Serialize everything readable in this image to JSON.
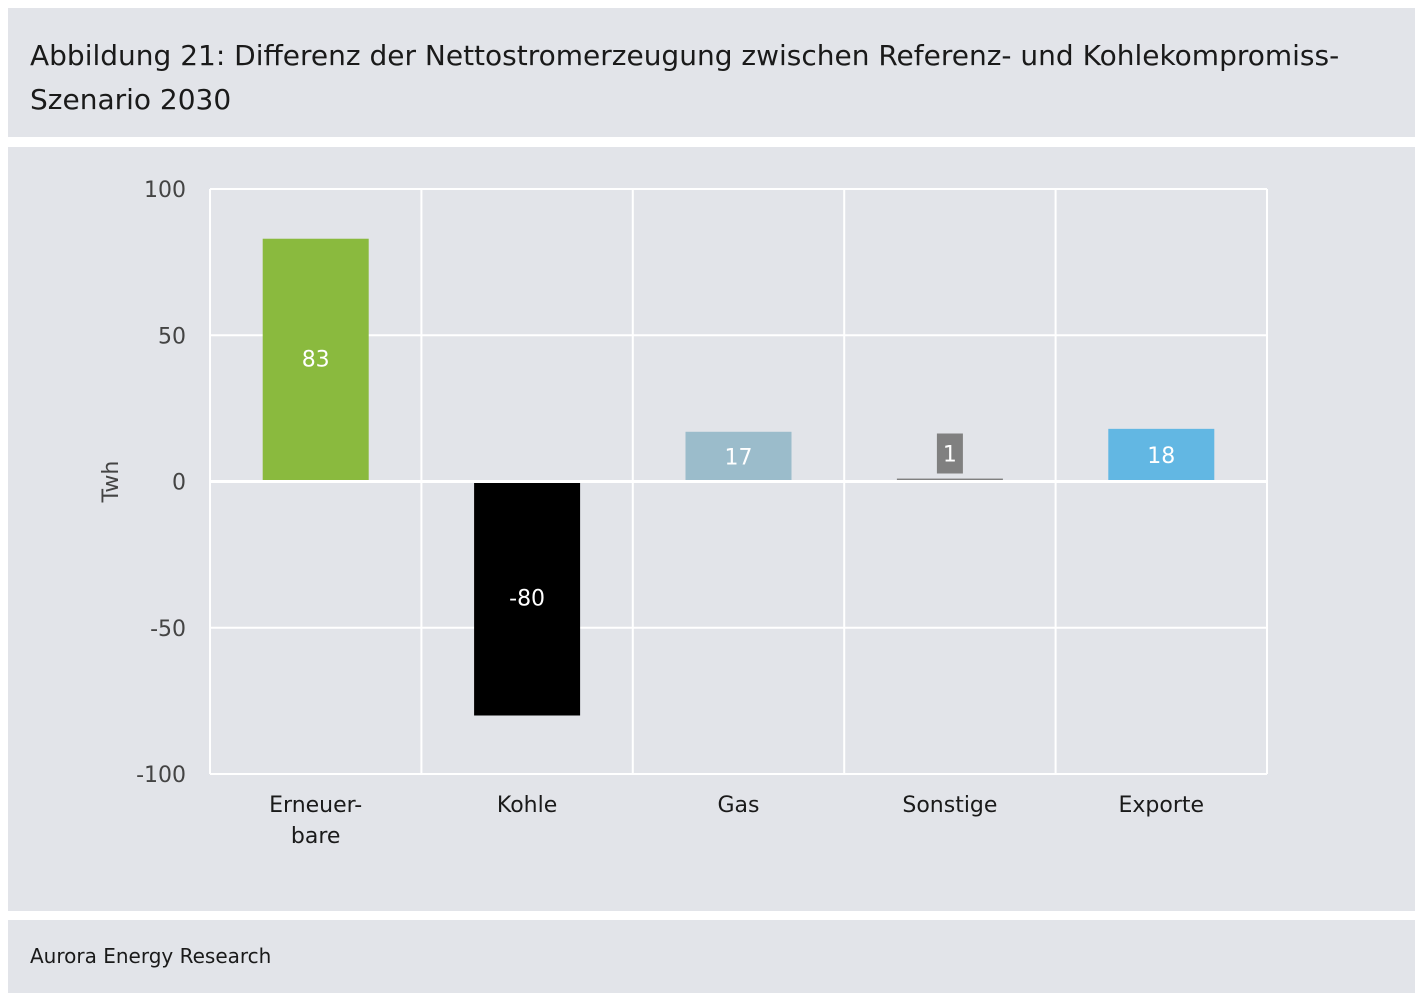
{
  "title": "Abbildung 21: Differenz der Nettostromerzeugung zwischen Referenz- und Kohlekompromiss-Szenario 2030",
  "source": "Aurora Energy Research",
  "colors": {
    "panel_bg": "#e2e4e9",
    "grid": "#ffffff"
  },
  "chart_data": {
    "type": "bar",
    "ylabel": "Twh",
    "ylim": [
      -100,
      100
    ],
    "yticks": [
      {
        "value": 100,
        "label": "100"
      },
      {
        "value": 50,
        "label": "50"
      },
      {
        "value": 0,
        "label": "0"
      },
      {
        "value": -50,
        "label": "-50"
      },
      {
        "value": -100,
        "label": "-100"
      }
    ],
    "grid": true,
    "categories": [
      {
        "line1": "Erneuer-",
        "line2": "bare"
      },
      {
        "line1": "Kohle",
        "line2": ""
      },
      {
        "line1": "Gas",
        "line2": ""
      },
      {
        "line1": "Sonstige",
        "line2": ""
      },
      {
        "line1": "Exporte",
        "line2": ""
      }
    ],
    "values": [
      83,
      -80,
      17,
      1,
      18
    ],
    "value_labels": [
      "83",
      "-80",
      "17",
      "1",
      "18"
    ],
    "bar_colors": [
      "#8aba3e",
      "#000000",
      "#9bbccb",
      "#808080",
      "#62b7e3"
    ]
  }
}
